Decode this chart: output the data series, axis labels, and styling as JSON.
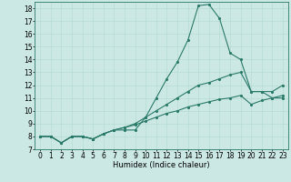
{
  "xlabel": "Humidex (Indice chaleur)",
  "bg_color": "#cce8e4",
  "line_color": "#2a7a6a",
  "grid_color": "#b0d8d0",
  "xlim": [
    -0.5,
    23.5
  ],
  "ylim": [
    7,
    18.5
  ],
  "xticks": [
    0,
    1,
    2,
    3,
    4,
    5,
    6,
    7,
    8,
    9,
    10,
    11,
    12,
    13,
    14,
    15,
    16,
    17,
    18,
    19,
    20,
    21,
    22,
    23
  ],
  "yticks": [
    7,
    8,
    9,
    10,
    11,
    12,
    13,
    14,
    15,
    16,
    17,
    18
  ],
  "line1_x": [
    0,
    1,
    2,
    3,
    4,
    5,
    6,
    7,
    8,
    9,
    10,
    11,
    12,
    13,
    14,
    15,
    16,
    17,
    18,
    19,
    20,
    21,
    22,
    23
  ],
  "line1_y": [
    8.0,
    8.0,
    7.5,
    8.0,
    8.0,
    7.8,
    8.2,
    8.5,
    8.5,
    8.5,
    9.5,
    11.0,
    12.5,
    13.8,
    15.5,
    18.2,
    18.3,
    17.2,
    14.5,
    14.0,
    11.5,
    11.5,
    11.0,
    11.0
  ],
  "line2_x": [
    0,
    1,
    2,
    3,
    4,
    5,
    6,
    7,
    8,
    9,
    10,
    11,
    12,
    13,
    14,
    15,
    16,
    17,
    18,
    19,
    20,
    21,
    22,
    23
  ],
  "line2_y": [
    8.0,
    8.0,
    7.5,
    8.0,
    8.0,
    7.8,
    8.2,
    8.5,
    8.7,
    9.0,
    9.5,
    10.0,
    10.5,
    11.0,
    11.5,
    12.0,
    12.2,
    12.5,
    12.8,
    13.0,
    11.5,
    11.5,
    11.5,
    12.0
  ],
  "line3_x": [
    0,
    1,
    2,
    3,
    4,
    5,
    6,
    7,
    8,
    9,
    10,
    11,
    12,
    13,
    14,
    15,
    16,
    17,
    18,
    19,
    20,
    21,
    22,
    23
  ],
  "line3_y": [
    8.0,
    8.0,
    7.5,
    8.0,
    8.0,
    7.8,
    8.2,
    8.5,
    8.7,
    8.9,
    9.2,
    9.5,
    9.8,
    10.0,
    10.3,
    10.5,
    10.7,
    10.9,
    11.0,
    11.2,
    10.5,
    10.8,
    11.0,
    11.2
  ],
  "marker": ".",
  "marker_size": 2.5,
  "line_width": 0.8,
  "xlabel_fontsize": 6,
  "tick_fontsize": 5.5
}
